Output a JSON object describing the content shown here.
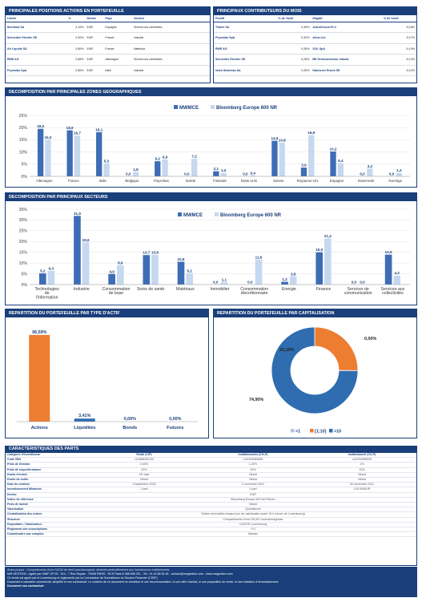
{
  "colors": {
    "navy": "#1a3f7a",
    "fund": "#3e6cb5",
    "bench": "#c5d8ef",
    "orange": "#ed7d31",
    "blue": "#2f6db0"
  },
  "positions": {
    "title": "PRINCIPALES POSITIONS ACTIONS EN PORTEFEUILLE",
    "headers": [
      "Libellé",
      "%",
      "Devise",
      "Pays",
      "Secteur"
    ],
    "rows": [
      [
        "Iberdrola SA",
        "3,15%",
        "EUR",
        "Espagne",
        "Services aux collectivités"
      ],
      [
        "Schneider Electric SE",
        "2,90%",
        "EUR",
        "France",
        "Industrie"
      ],
      [
        "Air Liquide SA",
        "2,89%",
        "EUR",
        "France",
        "Matériaux"
      ],
      [
        "RWE AG",
        "2,88%",
        "EUR",
        "Allemagne",
        "Services aux collectivités"
      ],
      [
        "Prysmian SpA",
        "2,85%",
        "EUR",
        "Italie",
        "Industrie"
      ]
    ]
  },
  "contributors": {
    "title": "PRINCIPAUX CONTRIBUTEURS DU MOIS",
    "headers": [
      "Positif",
      "% de l'actif",
      "Négatif",
      "% de l'actif"
    ],
    "rows": [
      [
        "Thales SA",
        "0,39%",
        "AstraZeneca PLC",
        "-0,18%"
      ],
      [
        "Prysmian SpA",
        "0,32%",
        "Alcon Inc",
        "-0,17%"
      ],
      [
        "RWE AG",
        "0,28%",
        "SOL SpA",
        "-0,14%"
      ],
      [
        "Schneider Electric SE",
        "0,28%",
        "BE Semiconductor Industr",
        "-0,13%"
      ],
      [
        "Indra Sistemas SA",
        "0,26%",
        "Hannover Rueck SE",
        "-0,12%"
      ]
    ]
  },
  "geo": {
    "title": "DECOMPOSITION PAR PRINCIPALES ZONES GEOGRAPHIQUES",
    "chart_data": {
      "type": "bar",
      "categories": [
        "Allemagne",
        "France",
        "Italie",
        "Belgique",
        "Pays-Bas",
        "Suède",
        "Finlande",
        "Etats Unis",
        "Suisse",
        "Royaume-Uni",
        "Espagne",
        "Danemark",
        "Norvège"
      ],
      "series": [
        {
          "name": "MWMCE",
          "values": [
            19.5,
            18.9,
            18.1,
            0.0,
            6.2,
            0.0,
            2.1,
            0.0,
            14.6,
            3.6,
            10.2,
            0.0,
            0.0
          ]
        },
        {
          "name": "Bloomberg Europe 600 NR",
          "values": [
            15.0,
            16.7,
            5.3,
            1.8,
            6.9,
            7.2,
            1.4,
            0.4,
            13.8,
            16.9,
            5.4,
            3.2,
            1.4
          ]
        }
      ],
      "labels": [
        [
          "19,5",
          "18,9",
          "18,1",
          "0,0",
          "6,2",
          "0,0",
          "2,1",
          "0,0",
          "14,6",
          "3,6",
          "10,2",
          "0,0",
          "0,0"
        ],
        [
          "15,0",
          "16,7",
          "5,3",
          "1,8",
          "6,9",
          "7,2",
          "1,4",
          "0,4",
          "13,8",
          "16,9",
          "5,4",
          "3,2",
          "1,4"
        ]
      ],
      "yticks": [
        "0%",
        "5%",
        "10%",
        "15%",
        "20%",
        "25%"
      ],
      "ylim": [
        0,
        25
      ]
    }
  },
  "sectors": {
    "title": "DECOMPOSITION PAR PRINCIPAUX SECTEURS",
    "chart_data": {
      "type": "bar",
      "categories": [
        "Technologies de l'information",
        "Industrie",
        "Consommation de base",
        "Soins de santé",
        "Matériaux",
        "Immobilier",
        "Consommation discrétionnaire",
        "Energie",
        "Finance",
        "Services de communication",
        "Services aux collectivités"
      ],
      "series": [
        {
          "name": "MWMCE",
          "values": [
            5.2,
            31.9,
            4.9,
            13.7,
            10.6,
            0.0,
            0.0,
            1.3,
            15.0,
            0.0,
            13.9
          ]
        },
        {
          "name": "Bloomberg Europe 600 NR",
          "values": [
            6.3,
            19.6,
            8.9,
            13.8,
            5.2,
            1.1,
            11.6,
            3.8,
            21.4,
            0.0,
            4.2
          ]
        }
      ],
      "labels": [
        [
          "5,2",
          "31,9",
          "4,9",
          "13,7",
          "10,6",
          "0,0",
          "0,0",
          "1,3",
          "15,0",
          "0,0",
          "13,9"
        ],
        [
          "6,3",
          "19,6",
          "8,9",
          "13,8",
          "5,2",
          "1,1",
          "11,6",
          "3,8",
          "21,4",
          "0,0",
          "4,2"
        ]
      ],
      "yticks": [
        "0%",
        "5%",
        "10%",
        "15%",
        "20%",
        "25%",
        "30%",
        "35%"
      ],
      "ylim": [
        0,
        35
      ]
    }
  },
  "assets": {
    "title": "REPARTITION DU PORTEFEUILLE PAR TYPE D'ACTIF",
    "chart_data": {
      "type": "bar",
      "categories": [
        "Actions",
        "Liquidités",
        "Bonds",
        "Futures"
      ],
      "values": [
        96.59,
        3.41,
        0.0,
        0.0
      ],
      "labels": [
        "96,59%",
        "3,41%",
        "0,00%",
        "0,00%"
      ]
    }
  },
  "cap": {
    "title": "REPARTITION DU PORTEFEUILLE PAR CAPITALISATION",
    "chart_data": {
      "type": "pie",
      "categories": [
        "<1",
        "[1;10]",
        ">10"
      ],
      "values": [
        0.0,
        25.1,
        74.9
      ],
      "labels": [
        "0,00%",
        "25,10%",
        "74,90%"
      ],
      "colors": [
        "#b0c4de",
        "#ed7d31",
        "#2f6db0"
      ]
    }
  },
  "caract": {
    "title": "CARACTERISTIQUES DES PARTS",
    "rows": [
      [
        "Catégorie d'investisseur",
        "Retail (C/P)",
        "Institutionnels (CG-P)",
        "Institutionnel (CS-P)"
      ],
      [
        "Code ISIN",
        "LU1868452240",
        "LU2334080855",
        "LU2334080939"
      ],
      [
        "Frais de Gestion",
        "2,00%",
        "1,20%",
        "1%"
      ],
      [
        "Frais de surperformance",
        "20%",
        "20%",
        "10%"
      ],
      [
        "Droits d'entrée",
        "2% max",
        "Néant",
        "Néant"
      ],
      [
        "Droits de sortie",
        "Néant",
        "Néant",
        "Néant"
      ],
      [
        "Date de création",
        "3 septembre 2018",
        "2 novembre 2021",
        "30 novembre 2021"
      ],
      [
        "Investissement Minimum",
        "1 part",
        "1 part",
        "125 000EUR"
      ],
      [
        "Devise",
        "EUR"
      ],
      [
        "Indice de référence",
        "Bloomberg Europe 600 Net Return"
      ],
      [
        "Frais de rachat",
        "Néant"
      ],
      [
        "Valorisation",
        "Quotidienne"
      ],
      [
        "Centralisation des ordres",
        "Ordres recevables chaque jour de valorisation avant 15 h (heure de Luxembourg)"
      ],
      [
        "Structure",
        "Compartiments d'une SICAV Luxembourgeoise"
      ],
      [
        "Dépositaire / Valorisateur",
        "CACEIS Luxembourg"
      ],
      [
        "Règlement des souscriptions",
        "J+2"
      ],
      [
        "Commissaire aux comptes",
        "Mazars"
      ]
    ]
  },
  "footer": {
    "note": "Avant-propos : Compartiments d'une SICAV de droit luxembourgeois, destinés particulièrement aux investisseurs institutionnels",
    "line1": "MW GESTION - Agréé par l'AMF GP 92 - 014 - 7 Rue Royale - 75008 PARIS - RCS Paris B 388 655 321 - Tel : 01 42 86 54 45 - contact@mwgestion.com - www.mwgestion.com",
    "line2": "Ce fonds est agréé par le Luxembourg et réglementé par la Commission de Surveillance du Secteur Financier (CSSF)",
    "line3": "Document à caractère commercial, simplifié et non contractuel. Le contenu de ce document ne constitue ni une recommandation, ni une offre d'achat, ni une proposition de vente, ni une incitation à l'investissement.",
    "line4": "Document non contractuel"
  }
}
